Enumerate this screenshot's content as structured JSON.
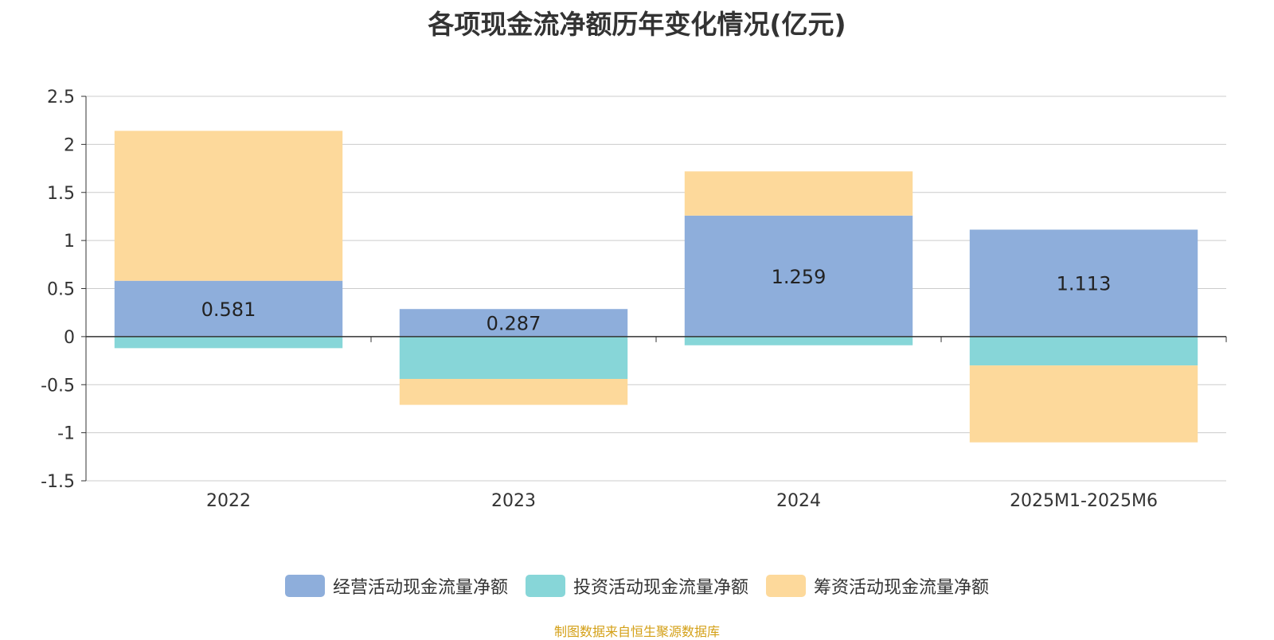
{
  "chart_data": {
    "type": "bar",
    "stacked": true,
    "title": "各项现金流净额历年变化情况(亿元)",
    "categories": [
      "2022",
      "2023",
      "2024",
      "2025M1-2025M6"
    ],
    "series": [
      {
        "name": "经营活动现金流量净额",
        "color": "#8eaedb",
        "values": [
          0.581,
          0.287,
          1.259,
          1.113
        ],
        "show_labels": true
      },
      {
        "name": "投资活动现金流量净额",
        "color": "#87d6d8",
        "values": [
          -0.12,
          -0.44,
          -0.09,
          -0.3
        ],
        "show_labels": false
      },
      {
        "name": "筹资活动现金流量净额",
        "color": "#fdd99b",
        "values": [
          1.56,
          -0.27,
          0.46,
          -0.8
        ],
        "show_labels": false
      }
    ],
    "ylim": [
      -1.5,
      2.5
    ],
    "yticks": [
      "2.5",
      "2",
      "1.5",
      "1",
      "0.5",
      "0",
      "-0.5",
      "-1",
      "-1.5"
    ],
    "ytick_values": [
      2.5,
      2,
      1.5,
      1,
      0.5,
      0,
      -0.5,
      -1,
      -1.5
    ],
    "grid": true,
    "legend_position": "bottom",
    "xlabel": "",
    "ylabel": ""
  },
  "source_note": "制图数据来自恒生聚源数据库"
}
